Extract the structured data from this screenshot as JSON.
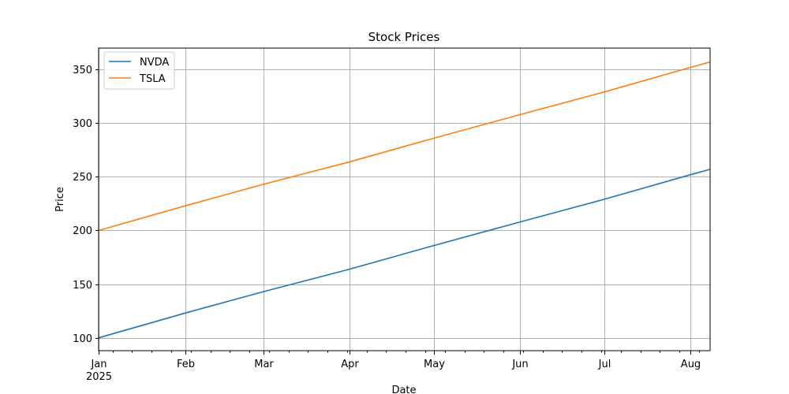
{
  "chart_data": {
    "type": "line",
    "title": "Stock Prices",
    "xlabel": "Date",
    "ylabel": "Price",
    "xlim": [
      "2025-01-01",
      "2025-08-08"
    ],
    "ylim": [
      88,
      370
    ],
    "yticks": [
      100,
      150,
      200,
      250,
      300,
      350
    ],
    "xticks": [
      {
        "date": "2025-01-01",
        "label": "Jan",
        "sublabel": "2025"
      },
      {
        "date": "2025-02-01",
        "label": "Feb",
        "sublabel": ""
      },
      {
        "date": "2025-03-01",
        "label": "Mar",
        "sublabel": ""
      },
      {
        "date": "2025-04-01",
        "label": "Apr",
        "sublabel": ""
      },
      {
        "date": "2025-05-01",
        "label": "May",
        "sublabel": ""
      },
      {
        "date": "2025-06-01",
        "label": "Jun",
        "sublabel": ""
      },
      {
        "date": "2025-07-01",
        "label": "Jul",
        "sublabel": ""
      },
      {
        "date": "2025-08-01",
        "label": "Aug",
        "sublabel": ""
      }
    ],
    "grid": true,
    "legend_position": "top-left",
    "series": [
      {
        "name": "NVDA",
        "color": "#1f77b4",
        "points": [
          {
            "x": "2025-01-01",
            "y": 100
          },
          {
            "x": "2025-02-01",
            "y": 123
          },
          {
            "x": "2025-03-01",
            "y": 143
          },
          {
            "x": "2025-04-01",
            "y": 164
          },
          {
            "x": "2025-05-01",
            "y": 186
          },
          {
            "x": "2025-06-01",
            "y": 208
          },
          {
            "x": "2025-07-01",
            "y": 229
          },
          {
            "x": "2025-08-01",
            "y": 252
          },
          {
            "x": "2025-08-08",
            "y": 257
          }
        ]
      },
      {
        "name": "TSLA",
        "color": "#ff7f0e",
        "points": [
          {
            "x": "2025-01-01",
            "y": 200
          },
          {
            "x": "2025-02-01",
            "y": 223
          },
          {
            "x": "2025-03-01",
            "y": 243
          },
          {
            "x": "2025-04-01",
            "y": 264
          },
          {
            "x": "2025-05-01",
            "y": 286
          },
          {
            "x": "2025-06-01",
            "y": 308
          },
          {
            "x": "2025-07-01",
            "y": 329
          },
          {
            "x": "2025-08-01",
            "y": 352
          },
          {
            "x": "2025-08-08",
            "y": 357
          }
        ]
      }
    ]
  }
}
